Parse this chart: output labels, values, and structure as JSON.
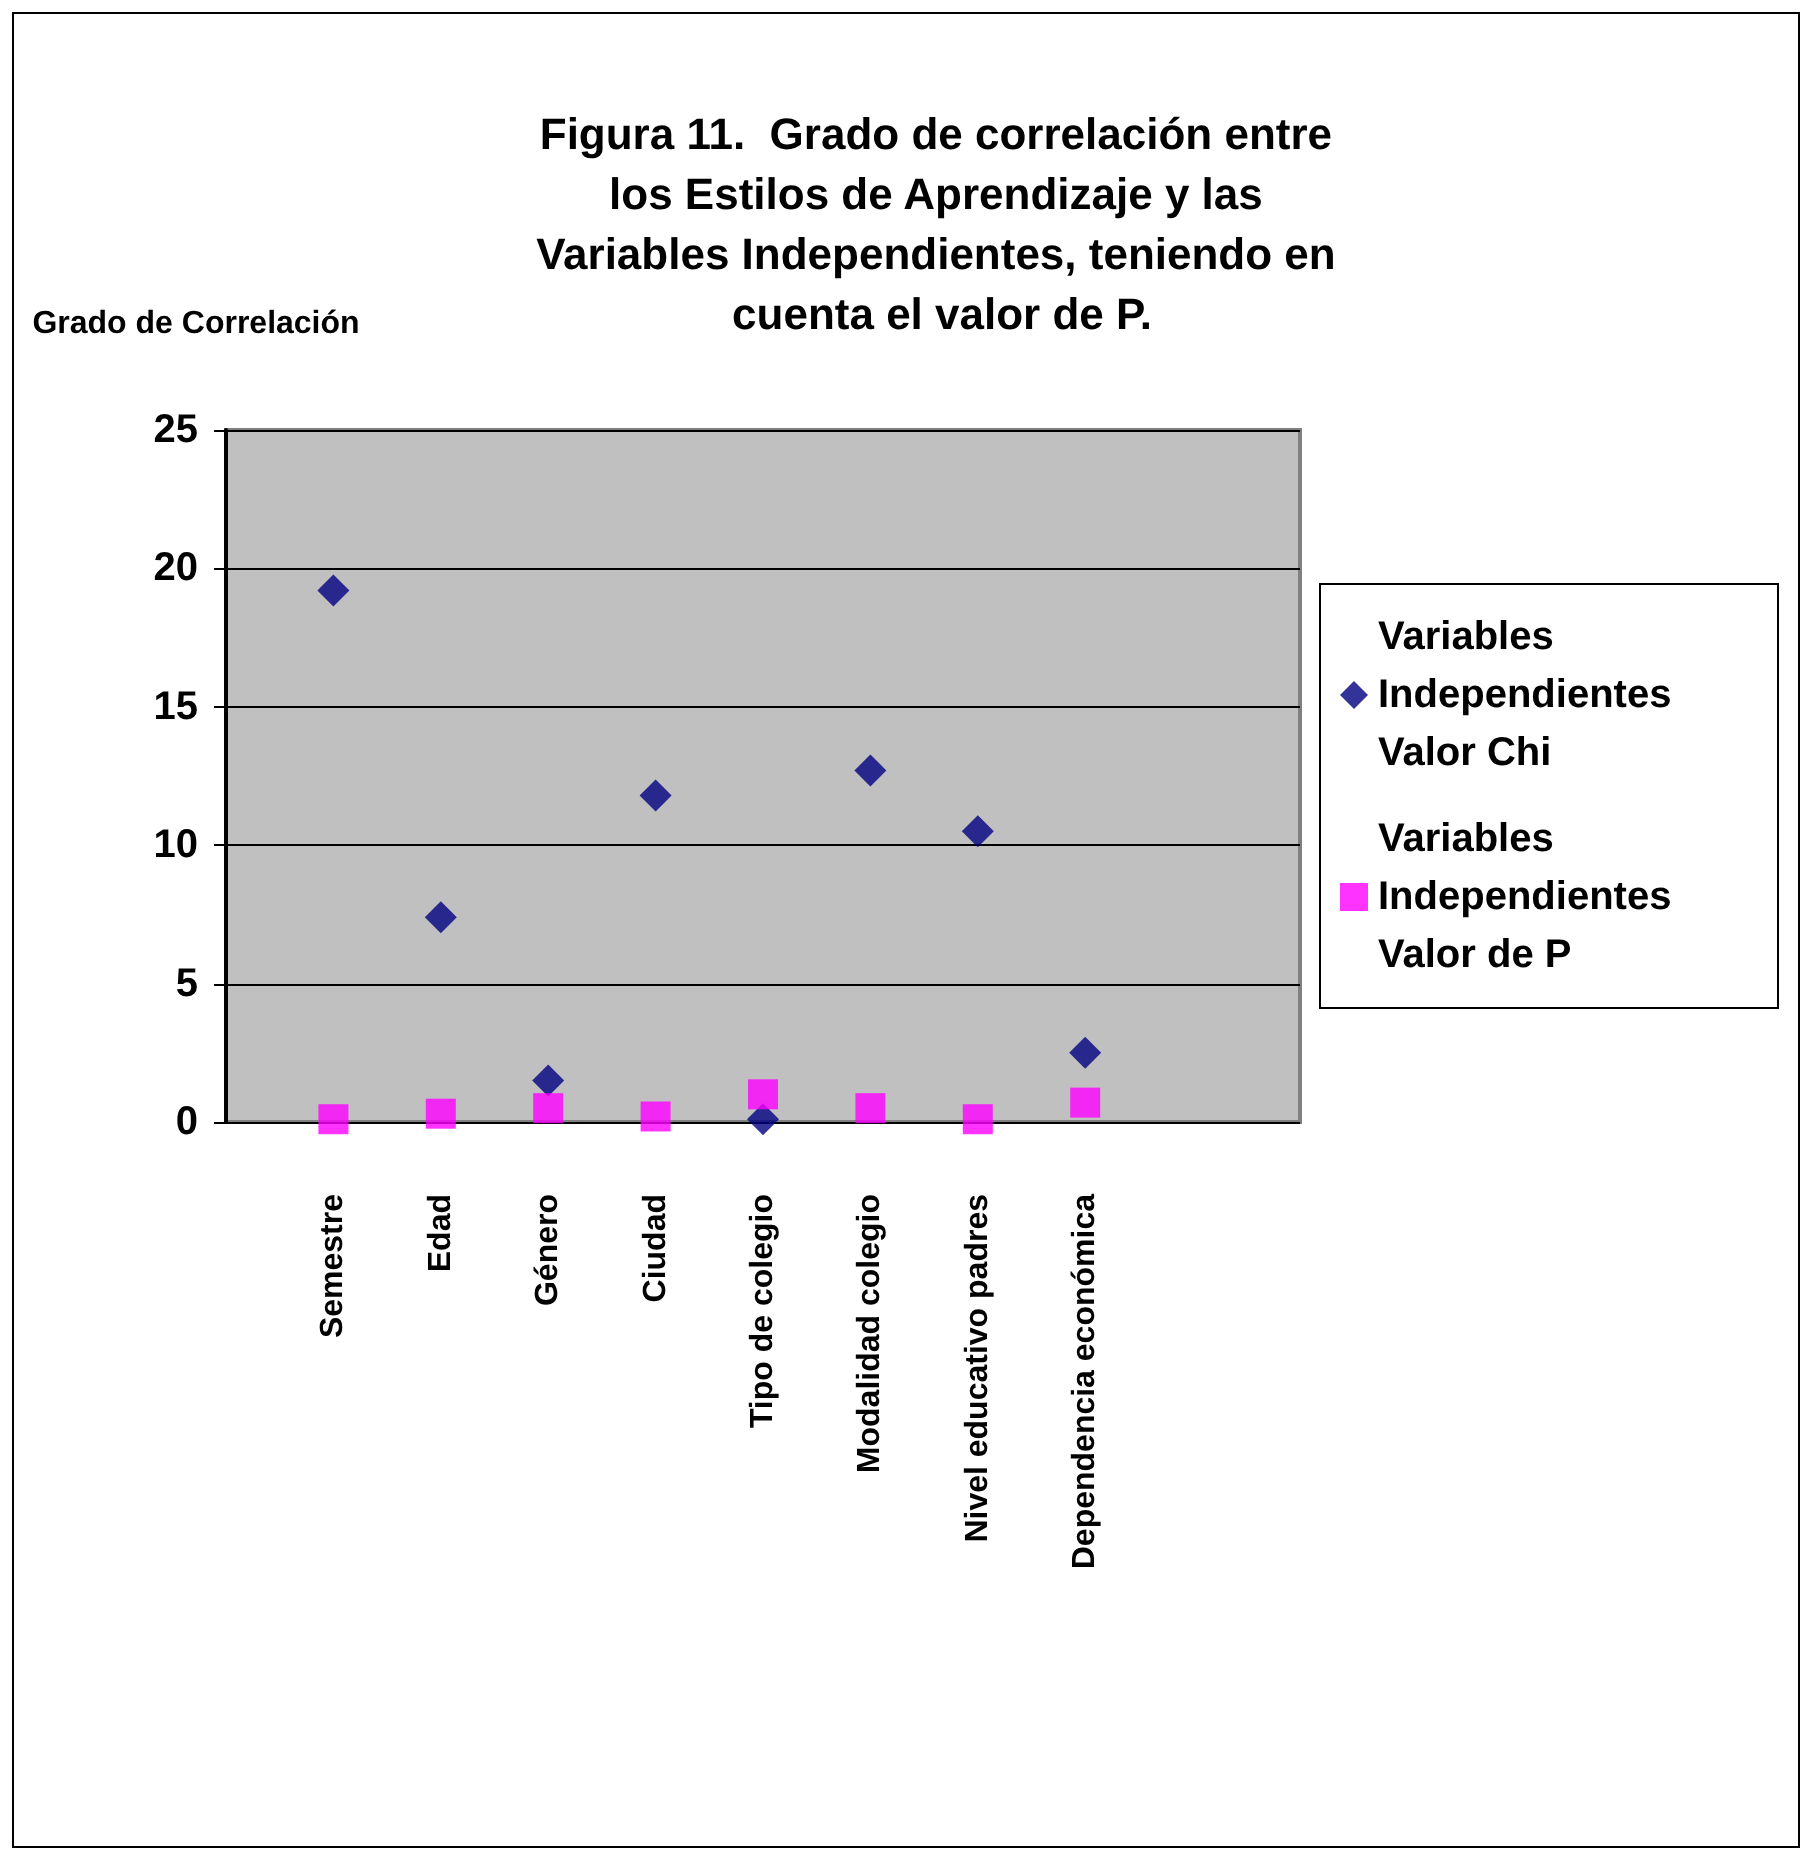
{
  "chart_data": {
    "type": "scatter",
    "title": "Figura 11.  Grado de correlación entre los Estilos de Aprendizaje y las Variables Independientes, teniendo en cuenta el valor de P.",
    "ylabel": "Grado de Correlación",
    "categories": [
      null,
      "Semestre",
      "Edad",
      "Género",
      "Ciudad",
      "Tipo de colegio",
      "Modalidad colegio",
      "Nivel educativo padres",
      "Dependencia económica",
      null,
      null
    ],
    "series": [
      {
        "name": "Variables Independientes Valor Chi",
        "color": "#000080",
        "marker": "diamond",
        "values": [
          null,
          19.2,
          7.4,
          1.5,
          11.8,
          0.1,
          12.7,
          10.5,
          2.5,
          null,
          null
        ]
      },
      {
        "name": "Variables Independientes Valor de P",
        "color": "#ff00ff",
        "marker": "square",
        "values": [
          null,
          0.1,
          0.3,
          0.5,
          0.2,
          1.0,
          0.5,
          0.1,
          0.7,
          null,
          null
        ]
      }
    ],
    "ylim": [
      0,
      25
    ],
    "yticks": [
      0,
      5,
      10,
      15,
      20,
      25
    ],
    "grid": "y",
    "legend": "right"
  }
}
